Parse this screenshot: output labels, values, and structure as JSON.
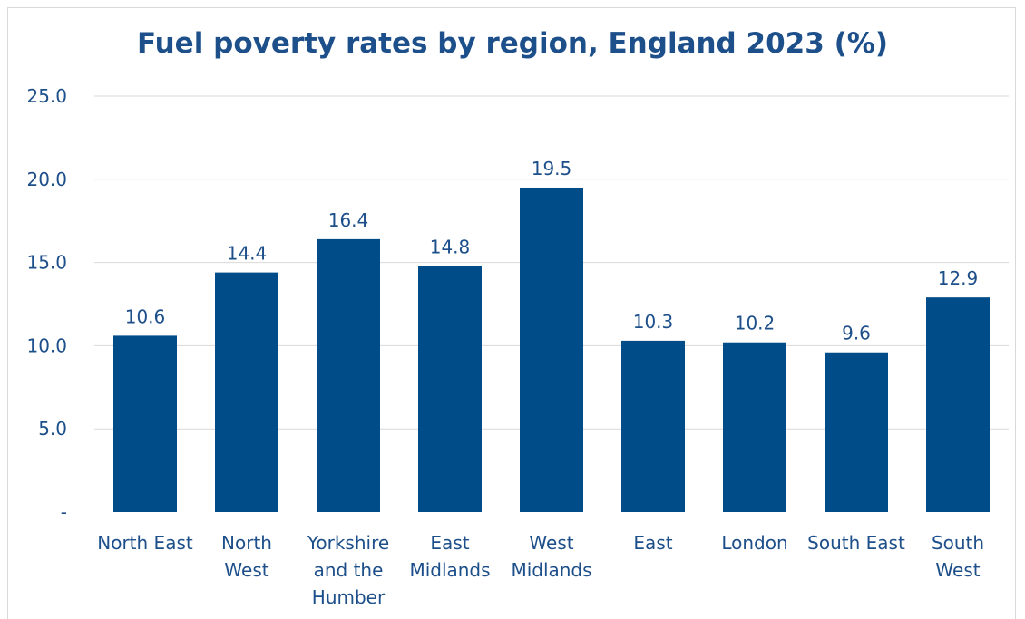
{
  "chart_data": {
    "type": "bar",
    "title": "Fuel poverty rates by region, England 2023 (%)",
    "xlabel": "",
    "ylabel": "",
    "categories": [
      [
        "North East"
      ],
      [
        "North",
        "West"
      ],
      [
        "Yorkshire",
        "and the",
        "Humber"
      ],
      [
        "East",
        "Midlands"
      ],
      [
        "West",
        "Midlands"
      ],
      [
        "East"
      ],
      [
        "London"
      ],
      [
        "South East"
      ],
      [
        "South",
        "West"
      ]
    ],
    "values": [
      10.6,
      14.4,
      16.4,
      14.8,
      19.5,
      10.3,
      10.2,
      9.6,
      12.9
    ],
    "value_labels": [
      "10.6",
      "14.4",
      "16.4",
      "14.8",
      "19.5",
      "10.3",
      "10.2",
      "9.6",
      "12.9"
    ],
    "ylim": [
      0,
      25
    ],
    "yticks": [
      0,
      5,
      10,
      15,
      20,
      25
    ],
    "ytick_labels": [
      "-",
      "5.0",
      "10.0",
      "15.0",
      "20.0",
      "25.0"
    ],
    "grid": true,
    "legend": "none",
    "colors": {
      "bar": "#004c88",
      "text": "#1d4f8a",
      "grid": "#d9d9d9"
    }
  }
}
